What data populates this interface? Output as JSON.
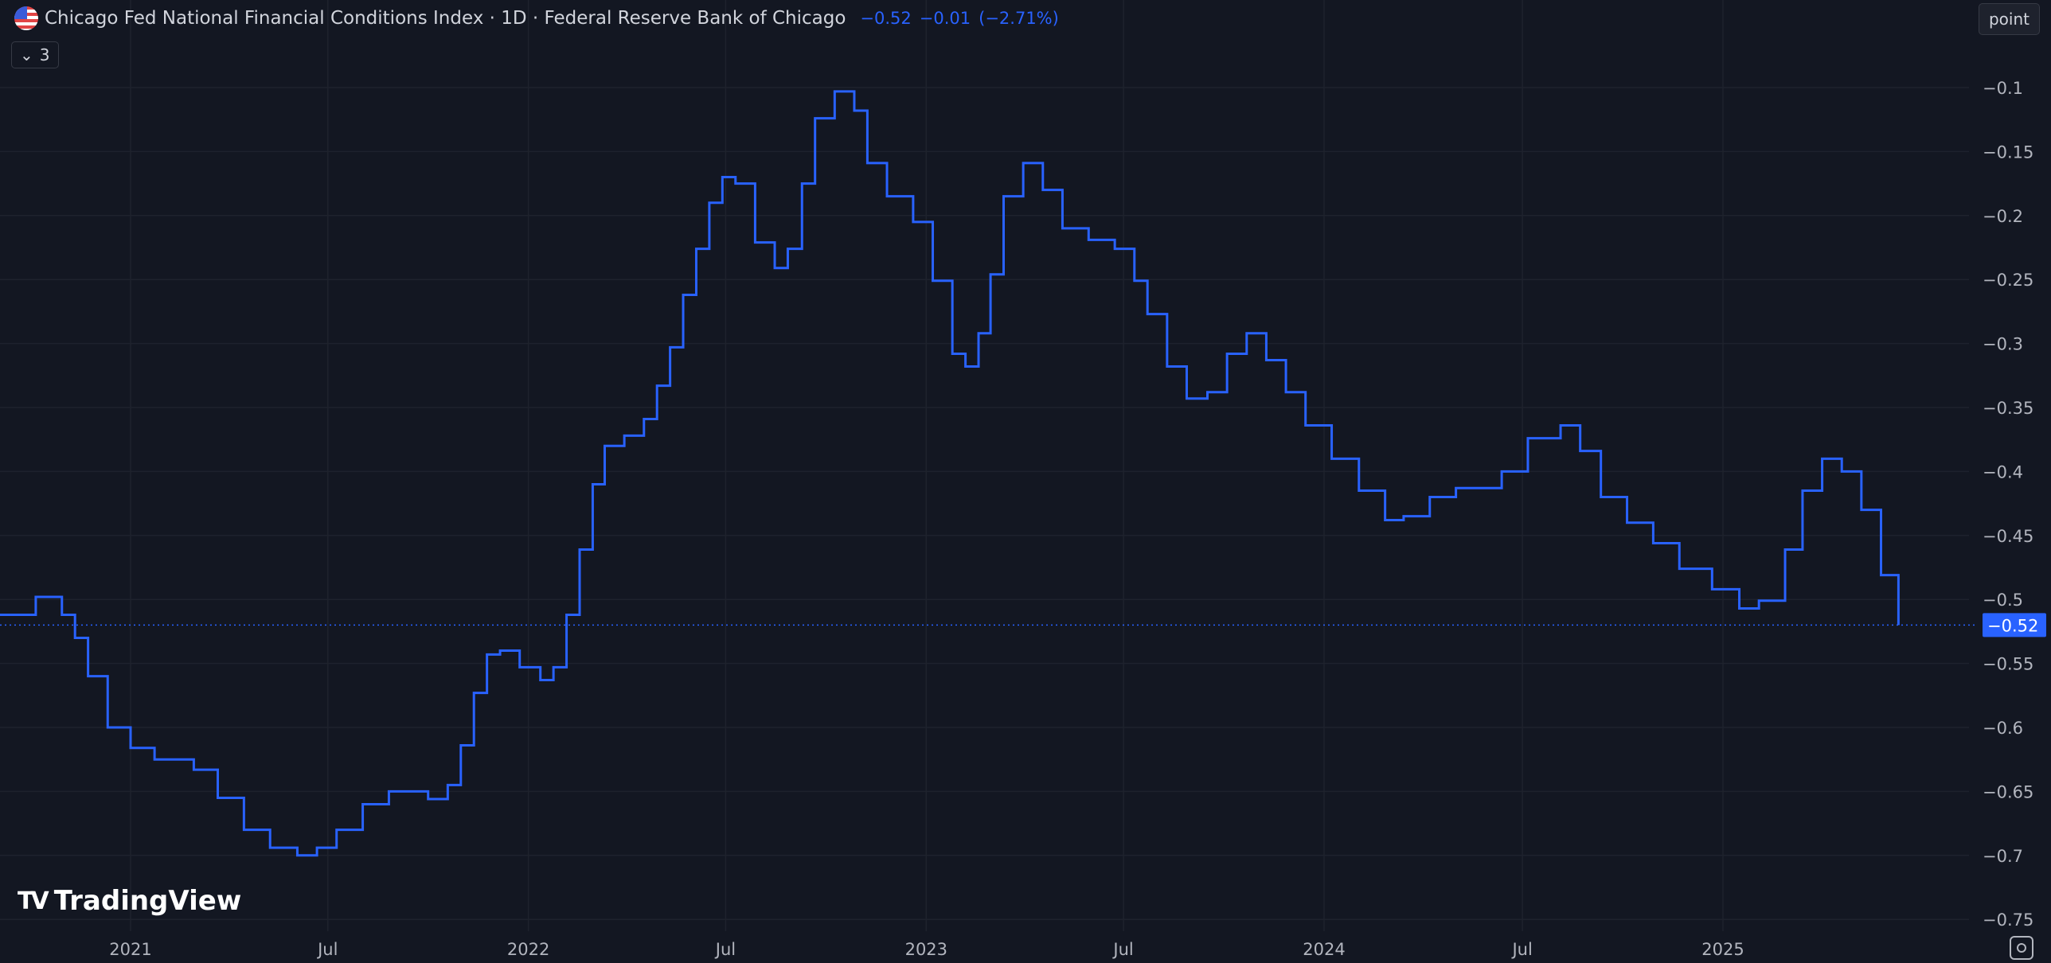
{
  "header": {
    "title": "Chicago Fed National Financial Conditions Index · 1D · Federal Reserve Bank of Chicago",
    "last_value": "−0.52",
    "change": "−0.01",
    "change_pct": "(−2.71%)",
    "flag_icon": "us-flag-icon",
    "indicators_toggle": "3",
    "unit_button": "point"
  },
  "watermark": "TradingView",
  "colors": {
    "line": "#2962ff",
    "background": "#131722",
    "grid": "#1e222d",
    "text": "#b2b5be"
  },
  "chart_data": {
    "type": "line",
    "step": true,
    "title": "Chicago Fed National Financial Conditions Index",
    "xlabel": "",
    "ylabel": "",
    "ylim": [
      -0.77,
      -0.07
    ],
    "grid": true,
    "last_value_label": "−0.52",
    "x_ticks": [
      {
        "label": "2021",
        "date": "2021-01-01"
      },
      {
        "label": "Jul",
        "date": "2021-07-01"
      },
      {
        "label": "2022",
        "date": "2022-01-01"
      },
      {
        "label": "Jul",
        "date": "2022-07-01"
      },
      {
        "label": "2023",
        "date": "2023-01-01"
      },
      {
        "label": "Jul",
        "date": "2023-07-01"
      },
      {
        "label": "2024",
        "date": "2024-01-01"
      },
      {
        "label": "Jul",
        "date": "2024-07-01"
      },
      {
        "label": "2025",
        "date": "2025-01-01"
      }
    ],
    "y_ticks": [
      {
        "label": "−0.1",
        "value": -0.1
      },
      {
        "label": "−0.15",
        "value": -0.15
      },
      {
        "label": "−0.2",
        "value": -0.2
      },
      {
        "label": "−0.25",
        "value": -0.25
      },
      {
        "label": "−0.3",
        "value": -0.3
      },
      {
        "label": "−0.35",
        "value": -0.35
      },
      {
        "label": "−0.4",
        "value": -0.4
      },
      {
        "label": "−0.45",
        "value": -0.45
      },
      {
        "label": "−0.5",
        "value": -0.5
      },
      {
        "label": "−0.55",
        "value": -0.55
      },
      {
        "label": "−0.6",
        "value": -0.6
      },
      {
        "label": "−0.65",
        "value": -0.65
      },
      {
        "label": "−0.7",
        "value": -0.7
      },
      {
        "label": "−0.75",
        "value": -0.75
      }
    ],
    "x": [
      "2020-09-01",
      "2020-10-06",
      "2020-10-30",
      "2020-11-11",
      "2020-11-23",
      "2020-12-11",
      "2021-01-01",
      "2021-01-23",
      "2021-02-28",
      "2021-03-22",
      "2021-04-15",
      "2021-05-09",
      "2021-06-03",
      "2021-06-21",
      "2021-07-09",
      "2021-08-02",
      "2021-08-26",
      "2021-10-01",
      "2021-10-19",
      "2021-10-31",
      "2021-11-12",
      "2021-11-24",
      "2021-12-06",
      "2021-12-24",
      "2022-01-12",
      "2022-01-24",
      "2022-02-05",
      "2022-02-17",
      "2022-03-01",
      "2022-03-12",
      "2022-03-30",
      "2022-04-17",
      "2022-04-29",
      "2022-05-11",
      "2022-05-23",
      "2022-06-04",
      "2022-06-16",
      "2022-06-28",
      "2022-07-10",
      "2022-07-28",
      "2022-08-15",
      "2022-08-27",
      "2022-09-09",
      "2022-09-21",
      "2022-10-09",
      "2022-10-27",
      "2022-11-08",
      "2022-11-26",
      "2022-12-20",
      "2023-01-07",
      "2023-01-25",
      "2023-02-06",
      "2023-02-18",
      "2023-03-01",
      "2023-03-13",
      "2023-03-31",
      "2023-04-18",
      "2023-05-06",
      "2023-05-30",
      "2023-06-23",
      "2023-07-11",
      "2023-07-23",
      "2023-08-10",
      "2023-08-28",
      "2023-09-16",
      "2023-10-04",
      "2023-10-22",
      "2023-11-09",
      "2023-11-27",
      "2023-12-15",
      "2024-01-08",
      "2024-02-02",
      "2024-02-26",
      "2024-03-14",
      "2024-04-07",
      "2024-05-01",
      "2024-05-25",
      "2024-06-12",
      "2024-07-06",
      "2024-08-05",
      "2024-08-23",
      "2024-09-11",
      "2024-10-05",
      "2024-10-29",
      "2024-11-22",
      "2024-12-22",
      "2025-01-16",
      "2025-02-03",
      "2025-02-27",
      "2025-03-15",
      "2025-04-02",
      "2025-04-20",
      "2025-05-08",
      "2025-05-26",
      "2025-06-11"
    ],
    "series": [
      {
        "values": [
          -0.512,
          -0.498,
          -0.512,
          -0.53,
          -0.56,
          -0.6,
          -0.616,
          -0.625,
          -0.633,
          -0.655,
          -0.68,
          -0.694,
          -0.7,
          -0.694,
          -0.68,
          -0.66,
          -0.65,
          -0.656,
          -0.645,
          -0.614,
          -0.573,
          -0.543,
          -0.54,
          -0.553,
          -0.563,
          -0.553,
          -0.512,
          -0.461,
          -0.41,
          -0.38,
          -0.372,
          -0.359,
          -0.333,
          -0.303,
          -0.262,
          -0.226,
          -0.19,
          -0.17,
          -0.175,
          -0.221,
          -0.241,
          -0.226,
          -0.175,
          -0.124,
          -0.103,
          -0.118,
          -0.159,
          -0.185,
          -0.205,
          -0.251,
          -0.308,
          -0.318,
          -0.292,
          -0.246,
          -0.185,
          -0.159,
          -0.18,
          -0.21,
          -0.219,
          -0.226,
          -0.251,
          -0.277,
          -0.318,
          -0.343,
          -0.338,
          -0.308,
          -0.292,
          -0.313,
          -0.338,
          -0.364,
          -0.39,
          -0.415,
          -0.438,
          -0.435,
          -0.42,
          -0.413,
          -0.413,
          -0.4,
          -0.374,
          -0.364,
          -0.384,
          -0.42,
          -0.44,
          -0.456,
          -0.476,
          -0.492,
          -0.507,
          -0.501,
          -0.461,
          -0.415,
          -0.39,
          -0.4,
          -0.43,
          -0.481,
          -0.52
        ]
      }
    ]
  }
}
